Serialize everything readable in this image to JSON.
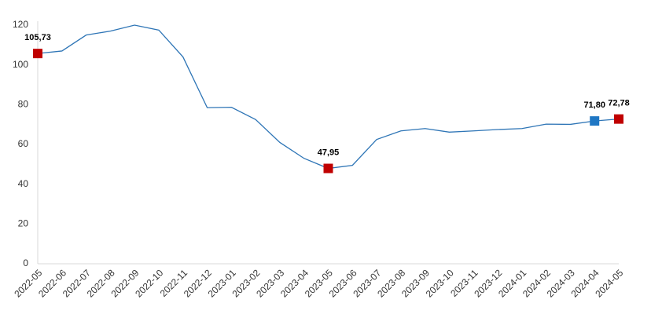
{
  "chart_data": {
    "type": "line",
    "categories": [
      "2022-05",
      "2022-06",
      "2022-07",
      "2022-08",
      "2022-09",
      "2022-10",
      "2022-11",
      "2022-12",
      "2023-01",
      "2023-02",
      "2023-03",
      "2023-04",
      "2023-05",
      "2023-06",
      "2023-07",
      "2023-08",
      "2023-09",
      "2023-10",
      "2023-11",
      "2023-12",
      "2024-01",
      "2024-02",
      "2024-03",
      "2024-04",
      "2024-05"
    ],
    "values": [
      105.73,
      107,
      115,
      117,
      120,
      117.5,
      104,
      78.5,
      78.7,
      72.5,
      61,
      53,
      47.95,
      49.5,
      62.5,
      66.8,
      68,
      66.2,
      66.8,
      67.5,
      68,
      70.2,
      70.1,
      71.8,
      72.78
    ],
    "value_labels": [
      "105,73",
      null,
      null,
      null,
      null,
      null,
      null,
      null,
      null,
      null,
      null,
      null,
      "47,95",
      null,
      null,
      null,
      null,
      null,
      null,
      null,
      null,
      null,
      null,
      "71,80",
      "72,78"
    ],
    "marker_colors": [
      "#c00000",
      null,
      null,
      null,
      null,
      null,
      null,
      null,
      null,
      null,
      null,
      null,
      "#c00000",
      null,
      null,
      null,
      null,
      null,
      null,
      null,
      null,
      null,
      null,
      "#1f77c4",
      "#c00000"
    ],
    "color": "#2e75b6",
    "ylim": [
      0,
      120
    ],
    "yticks": [
      0,
      20,
      40,
      60,
      80,
      100,
      120
    ],
    "grid": false
  }
}
